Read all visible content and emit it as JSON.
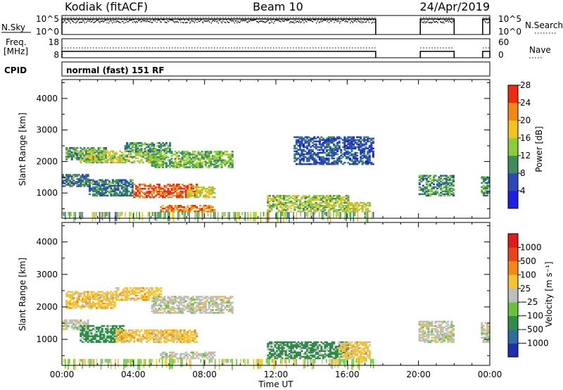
{
  "header": {
    "site": "Kodiak (fitACF)",
    "beam": "Beam 10",
    "date": "24/Apr/2019"
  },
  "status_panels": {
    "nsky_label": "N.Sky",
    "nsky_ticks": [
      "10^5",
      "10^0"
    ],
    "nsearch_label": "N.Search",
    "freq_label": "Freq.",
    "freq_unit": "[MHz]",
    "freq_ticks": [
      "18",
      "8"
    ],
    "nave_label": "Nave",
    "nave_ticks": [
      "60",
      "0"
    ],
    "cpid_label": "CPID",
    "cpid_text": "normal (fast) 151 RF"
  },
  "chart_data": [
    {
      "type": "heatmap",
      "name": "power",
      "ylabel": "Slant Range [km]",
      "xlabel": "Time UT",
      "xticks": [
        "00:00",
        "04:00",
        "08:00",
        "12:00",
        "16:00",
        "20:00",
        "00:00"
      ],
      "yticks": [
        1000,
        2000,
        3000,
        4000
      ],
      "ylim": [
        200,
        4600
      ],
      "xlim_hours": [
        0,
        24
      ],
      "colorbar": {
        "label": "Power [dB]",
        "ticks": [
          4,
          8,
          12,
          16,
          20,
          24,
          28
        ],
        "colors": [
          "#1e1ee6",
          "#2d49b8",
          "#3e8c5a",
          "#8ccc3c",
          "#f2c21e",
          "#f08a14",
          "#ee2a10"
        ]
      },
      "echo_regions": [
        {
          "t": [
            0.2,
            2.5
          ],
          "r": [
            2050,
            2450
          ],
          "level": 12
        },
        {
          "t": [
            1.0,
            5.5
          ],
          "r": [
            1950,
            2350
          ],
          "level": 16
        },
        {
          "t": [
            3.5,
            6.0
          ],
          "r": [
            2300,
            2600
          ],
          "level": 12
        },
        {
          "t": [
            5.0,
            9.5
          ],
          "r": [
            1800,
            2300
          ],
          "level": 14
        },
        {
          "t": [
            0.0,
            1.5
          ],
          "r": [
            1200,
            1600
          ],
          "level": 10
        },
        {
          "t": [
            1.5,
            4.0
          ],
          "r": [
            900,
            1400
          ],
          "level": 10
        },
        {
          "t": [
            4.0,
            7.5
          ],
          "r": [
            850,
            1300
          ],
          "level": 26
        },
        {
          "t": [
            5.5,
            8.5
          ],
          "r": [
            400,
            600
          ],
          "level": 24
        },
        {
          "t": [
            7.0,
            8.5
          ],
          "r": [
            850,
            1200
          ],
          "level": 18
        },
        {
          "t": [
            11.5,
            16.0
          ],
          "r": [
            400,
            900
          ],
          "level": 16
        },
        {
          "t": [
            16.0,
            17.3
          ],
          "r": [
            400,
            700
          ],
          "level": 18
        },
        {
          "t": [
            13.0,
            17.5
          ],
          "r": [
            1900,
            2800
          ],
          "level": 8
        },
        {
          "t": [
            20.0,
            22.0
          ],
          "r": [
            900,
            1550
          ],
          "level": 12
        },
        {
          "t": [
            23.5,
            24.0
          ],
          "r": [
            900,
            1500
          ],
          "level": 12
        }
      ]
    },
    {
      "type": "heatmap",
      "name": "velocity",
      "ylabel": "Slant Range [km]",
      "xlabel": "Time UT",
      "xticks": [
        "00:00",
        "04:00",
        "08:00",
        "12:00",
        "16:00",
        "20:00",
        "00:00"
      ],
      "yticks": [
        1000,
        2000,
        3000,
        4000
      ],
      "ylim": [
        200,
        4600
      ],
      "xlim_hours": [
        0,
        24
      ],
      "colorbar": {
        "label": "Velocity [m s⁻¹]",
        "ticks": [
          "1000",
          "500",
          "100",
          "25",
          "−25",
          "−100",
          "−500",
          "−1000"
        ],
        "colors": [
          "#1e2fb0",
          "#2e6e9a",
          "#2f8c4a",
          "#6ac23c",
          "#bdbdbd",
          "#f5c232",
          "#f08a14",
          "#e8461a",
          "#e01b1b"
        ]
      },
      "echo_regions": [
        {
          "t": [
            0.2,
            3.0
          ],
          "r": [
            1950,
            2450
          ],
          "level": -100
        },
        {
          "t": [
            3.0,
            5.5
          ],
          "r": [
            2200,
            2600
          ],
          "level": -100
        },
        {
          "t": [
            5.0,
            9.5
          ],
          "r": [
            1800,
            2300
          ],
          "level": 0
        },
        {
          "t": [
            0.0,
            1.5
          ],
          "r": [
            1300,
            1600
          ],
          "level": 0
        },
        {
          "t": [
            1.0,
            3.5
          ],
          "r": [
            900,
            1400
          ],
          "level": 100
        },
        {
          "t": [
            3.0,
            7.5
          ],
          "r": [
            900,
            1300
          ],
          "level": -100
        },
        {
          "t": [
            5.5,
            8.5
          ],
          "r": [
            400,
            600
          ],
          "level": 0
        },
        {
          "t": [
            11.5,
            16.0
          ],
          "r": [
            400,
            900
          ],
          "level": 100
        },
        {
          "t": [
            15.5,
            17.3
          ],
          "r": [
            400,
            900
          ],
          "level": -100
        },
        {
          "t": [
            20.0,
            22.0
          ],
          "r": [
            900,
            1550
          ],
          "level": 0
        },
        {
          "t": [
            23.5,
            24.0
          ],
          "r": [
            900,
            1500
          ],
          "level": 0
        }
      ]
    }
  ]
}
